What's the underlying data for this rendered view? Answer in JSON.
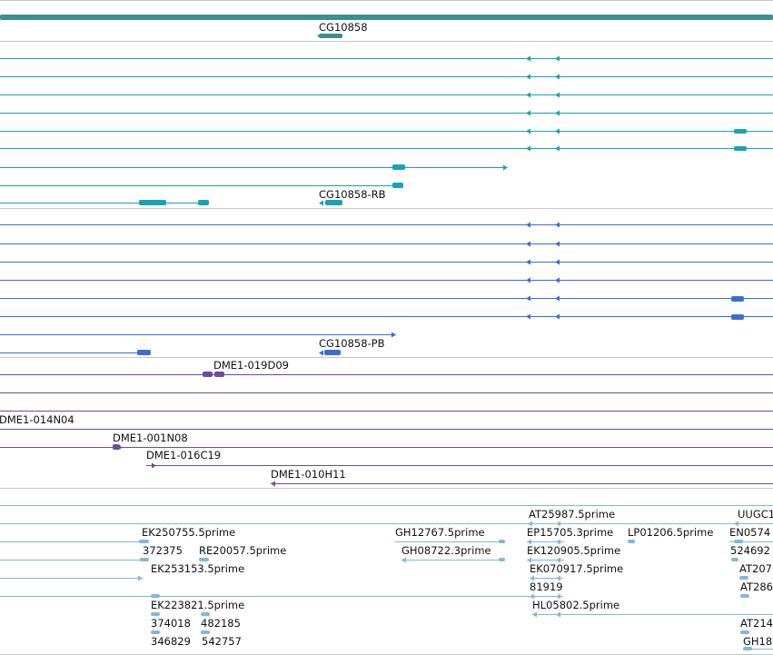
{
  "colors": {
    "gene": "#3d8f8f",
    "transcript": "#17a2b8",
    "protein": "#3a6fd0",
    "clone": "#6a4c9c",
    "est": "#7fb8dc",
    "divider": "#c8c8c8"
  },
  "labels": {
    "gene": "CG10858",
    "transcript_rb": "CG10858-RB",
    "protein_pb": "CG10858-PB",
    "clone_019d09": "DME1-019D09",
    "clone_014n04": "DME1-014N04",
    "clone_001n08": "DME1-001N08",
    "clone_016c19": "DME1-016C19",
    "clone_010h11": "DME1-010H11",
    "est_at25987": "AT25987.5prime",
    "est_uugc1": "UUGC1",
    "est_ek250755": "EK250755.5prime",
    "est_gh12767": "GH12767.5prime",
    "est_ep15705": "EP15705.3prime",
    "est_lp01206": "LP01206.5prime",
    "est_en0574": "EN0574",
    "est_372375": "372375",
    "est_re20057": "RE20057.5prime",
    "est_gh08722": "GH08722.3prime",
    "est_ek120905": "EK120905.5prime",
    "est_524692": "524692",
    "est_ek253153": "EK253153.5prime",
    "est_ek070917": "EK070917.5prime",
    "est_at207": "AT207",
    "est_81919": "81919",
    "est_at286": "AT286",
    "est_ek223821": "EK223821.5prime",
    "est_hl05802": "HL05802.5prime",
    "est_374018": "374018",
    "est_482185": "482185",
    "est_at214": "AT214",
    "est_346829": "346829",
    "est_542757": "542757",
    "est_gh18": "GH18"
  }
}
